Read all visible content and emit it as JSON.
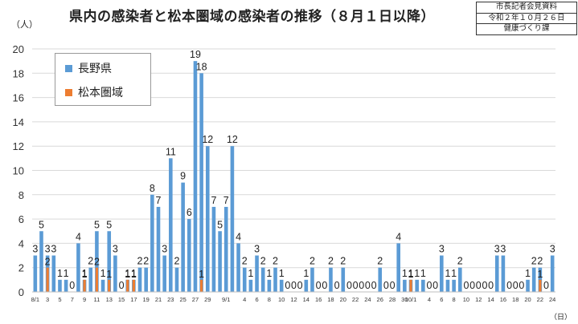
{
  "title": "県内の感染者と松本圏域の感染者の推移（８月１日以降）",
  "stamp": {
    "line1": "市長記者会見資料",
    "line2": "令和２年１０月２６日",
    "line3": "健康づくり課"
  },
  "chart_data": {
    "type": "bar",
    "title": "県内の感染者と松本圏域の感染者の推移（８月１日以降）",
    "ylabel": "（人）",
    "xlabel": "（日）",
    "ylim": [
      0,
      20
    ],
    "yticks": [
      0,
      2,
      4,
      6,
      8,
      10,
      12,
      14,
      16,
      18,
      20
    ],
    "grid": true,
    "legend_position": "top-left",
    "colors": {
      "nagano": "#5b9bd5",
      "matsumoto": "#ed7d31"
    },
    "categories": [
      "8/1",
      "2",
      "3",
      "4",
      "5",
      "6",
      "7",
      "8",
      "9",
      "10",
      "11",
      "12",
      "13",
      "14",
      "15",
      "16",
      "17",
      "18",
      "19",
      "20",
      "21",
      "22",
      "23",
      "24",
      "25",
      "26",
      "27",
      "28",
      "29",
      "30",
      "31",
      "9/1",
      "2",
      "3",
      "4",
      "5",
      "6",
      "7",
      "8",
      "9",
      "10",
      "11",
      "12",
      "13",
      "14",
      "15",
      "16",
      "17",
      "18",
      "19",
      "20",
      "21",
      "22",
      "23",
      "24",
      "25",
      "26",
      "27",
      "28",
      "29",
      "30",
      "10/1",
      "2",
      "3",
      "4",
      "5",
      "6",
      "7",
      "8",
      "9",
      "10",
      "11",
      "12",
      "13",
      "14",
      "15",
      "16",
      "17",
      "18",
      "19",
      "20",
      "21",
      "22",
      "23",
      "24"
    ],
    "tick_labels": [
      "8/1",
      "3",
      "5",
      "7",
      "9",
      "11",
      "13",
      "15",
      "17",
      "19",
      "21",
      "23",
      "25",
      "27",
      "29",
      "9/1",
      "4",
      "6",
      "8",
      "10",
      "12",
      "14",
      "16",
      "18",
      "20",
      "22",
      "24",
      "26",
      "28",
      "30",
      "10/1",
      "4",
      "6",
      "8",
      "10",
      "12",
      "14",
      "16",
      "18",
      "20",
      "22",
      "24"
    ],
    "series": [
      {
        "name": "長野県",
        "values": [
          3,
          5,
          3,
          3,
          1,
          1,
          0,
          4,
          1,
          2,
          5,
          1,
          5,
          3,
          0,
          1,
          1,
          2,
          2,
          8,
          7,
          3,
          11,
          2,
          9,
          6,
          19,
          18,
          12,
          7,
          5,
          7,
          12,
          4,
          2,
          1,
          3,
          2,
          1,
          2,
          1,
          0,
          0,
          0,
          1,
          2,
          0,
          0,
          2,
          0,
          2,
          0,
          0,
          0,
          0,
          0,
          2,
          0,
          0,
          4,
          1,
          1,
          1,
          1,
          0,
          0,
          3,
          1,
          1,
          2,
          0,
          0,
          0,
          0,
          0,
          3,
          3,
          0,
          0,
          0,
          1,
          2,
          2,
          0,
          3
        ]
      },
      {
        "name": "松本圏域",
        "values": [
          0,
          0,
          2,
          0,
          0,
          0,
          0,
          0,
          1,
          0,
          2,
          0,
          1,
          0,
          0,
          1,
          1,
          0,
          0,
          0,
          0,
          0,
          0,
          0,
          0,
          0,
          0,
          1,
          0,
          0,
          0,
          0,
          0,
          0,
          0,
          0,
          0,
          0,
          0,
          0,
          0,
          0,
          0,
          0,
          0,
          0,
          0,
          0,
          0,
          0,
          0,
          0,
          0,
          0,
          0,
          0,
          0,
          0,
          0,
          0,
          0,
          1,
          0,
          0,
          0,
          0,
          0,
          0,
          0,
          0,
          0,
          0,
          0,
          0,
          0,
          0,
          0,
          0,
          0,
          0,
          0,
          0,
          1,
          0,
          0
        ]
      }
    ]
  }
}
